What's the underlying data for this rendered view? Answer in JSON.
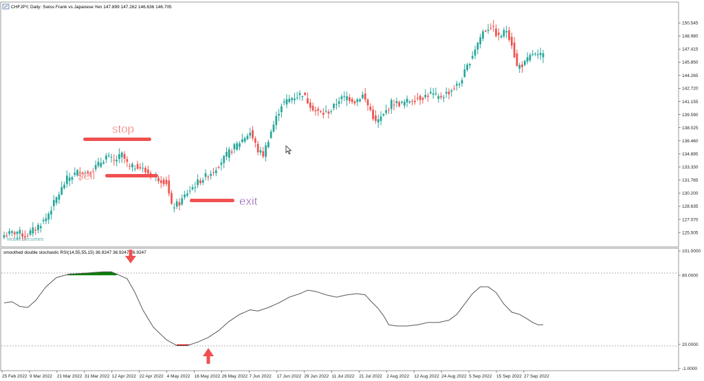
{
  "header": {
    "symbol_icon": "chart-icon",
    "text": "CHFJPY, Daily:  Swiss Frank vs Japanese Yen  147.899 147.262 146.636 146.705"
  },
  "watermark": "Mobile Securities",
  "indicator": {
    "title": "smoothed double stochastic RSI(14,55,55,15) 36.9247 36.9247 36.9247",
    "levels": {
      "upper": 80,
      "lower": 20
    },
    "ylim": [
      0,
      101
    ],
    "overbought_color": "#0a7d0a",
    "oversold_color": "#e01010"
  },
  "annotations": {
    "stop": "stop",
    "sell": "sell",
    "exit": "exit",
    "stop_color": "#f05050",
    "exit_color": "#7030a0",
    "marker_color": "#f05050"
  },
  "chart_data": [
    {
      "type": "candlestick",
      "title": "CHFJPY, Daily",
      "ylim": [
        124.2,
        151.8
      ],
      "y_ticks": [
        "150.545",
        "148.980",
        "147.415",
        "145.850",
        "144.265",
        "142.720",
        "141.155",
        "139.590",
        "138.025",
        "136.460",
        "134.895",
        "133.330",
        "131.765",
        "130.200",
        "128.635",
        "127.070",
        "125.505"
      ],
      "y_tick_values": [
        150.545,
        148.98,
        147.415,
        145.85,
        144.265,
        142.72,
        141.155,
        139.59,
        138.025,
        136.46,
        134.895,
        133.33,
        131.765,
        130.2,
        128.635,
        127.07,
        125.505
      ],
      "x_ticks": [
        "25 Feb 2022",
        "9 Mar 2022",
        "21 Mar 2022",
        "31 Mar 2022",
        "12 Apr 2022",
        "22 Apr 2022",
        "4 May 2022",
        "16 May 2022",
        "26 May 2022",
        "7 Jun 2022",
        "17 Jun 2022",
        "29 Jun 2022",
        "11 Jul 2022",
        "21 Jul 2022",
        "2 Aug 2022",
        "12 Aug 2022",
        "24 Aug 2022",
        "5 Sep 2022",
        "15 Sep 2022",
        "27 Sep 2022"
      ],
      "bull_color": "#26a69a",
      "bear_color": "#ef5350",
      "anchors": [
        [
          0,
          125.2
        ],
        [
          5,
          125.6
        ],
        [
          8,
          125.1
        ],
        [
          12,
          126.0
        ],
        [
          16,
          127.2
        ],
        [
          20,
          129.6
        ],
        [
          24,
          131.9
        ],
        [
          28,
          132.7
        ],
        [
          32,
          132.6
        ],
        [
          36,
          133.6
        ],
        [
          39,
          134.6
        ],
        [
          42,
          134.0
        ],
        [
          45,
          134.8
        ],
        [
          48,
          133.2
        ],
        [
          51,
          133.5
        ],
        [
          54,
          132.8
        ],
        [
          58,
          132.1
        ],
        [
          62,
          131.5
        ],
        [
          64,
          128.6
        ],
        [
          67,
          129.0
        ],
        [
          70,
          130.3
        ],
        [
          74,
          131.5
        ],
        [
          80,
          132.9
        ],
        [
          86,
          135.1
        ],
        [
          90,
          136.3
        ],
        [
          94,
          137.5
        ],
        [
          97,
          135.3
        ],
        [
          99,
          134.8
        ],
        [
          102,
          137.6
        ],
        [
          106,
          140.8
        ],
        [
          110,
          141.6
        ],
        [
          114,
          142.1
        ],
        [
          116,
          141.2
        ],
        [
          119,
          140.0
        ],
        [
          122,
          139.7
        ],
        [
          125,
          140.1
        ],
        [
          128,
          141.4
        ],
        [
          131,
          141.7
        ],
        [
          134,
          141.2
        ],
        [
          137,
          141.9
        ],
        [
          140,
          140.1
        ],
        [
          142,
          138.6
        ],
        [
          145,
          139.5
        ],
        [
          148,
          141.0
        ],
        [
          152,
          140.9
        ],
        [
          156,
          141.4
        ],
        [
          160,
          141.7
        ],
        [
          163,
          142.1
        ],
        [
          166,
          141.6
        ],
        [
          170,
          142.3
        ],
        [
          174,
          143.3
        ],
        [
          177,
          145.3
        ],
        [
          180,
          147.5
        ],
        [
          183,
          149.5
        ],
        [
          186,
          150.2
        ],
        [
          189,
          148.8
        ],
        [
          192,
          149.7
        ],
        [
          194,
          148.1
        ],
        [
          196,
          145.3
        ],
        [
          199,
          145.7
        ],
        [
          202,
          146.9
        ],
        [
          204,
          146.5
        ],
        [
          206,
          146.7
        ]
      ],
      "series": [
        {
          "name": "",
          "count": 207
        }
      ]
    },
    {
      "type": "line",
      "title": "smoothed double stochastic RSI(14,55,55,15)",
      "ylim": [
        0,
        101
      ],
      "y_ticks": [
        "101.0000",
        "80.0000",
        "20.0000",
        "-1.0000"
      ],
      "y_tick_values": [
        101,
        80,
        20,
        -1
      ],
      "anchors": [
        [
          0,
          56
        ],
        [
          3,
          57
        ],
        [
          6,
          53
        ],
        [
          9,
          52
        ],
        [
          12,
          58
        ],
        [
          16,
          70
        ],
        [
          20,
          78
        ],
        [
          25,
          81
        ],
        [
          32,
          82
        ],
        [
          38,
          83
        ],
        [
          41,
          83
        ],
        [
          44,
          80
        ],
        [
          47,
          77
        ],
        [
          50,
          65
        ],
        [
          53,
          50
        ],
        [
          57,
          35
        ],
        [
          62,
          24
        ],
        [
          66,
          19
        ],
        [
          70,
          19
        ],
        [
          74,
          22
        ],
        [
          78,
          26
        ],
        [
          82,
          32
        ],
        [
          86,
          40
        ],
        [
          90,
          46
        ],
        [
          94,
          50
        ],
        [
          97,
          49
        ],
        [
          101,
          52
        ],
        [
          105,
          56
        ],
        [
          109,
          61
        ],
        [
          113,
          64
        ],
        [
          116,
          67
        ],
        [
          119,
          66
        ],
        [
          123,
          63
        ],
        [
          127,
          61
        ],
        [
          131,
          63
        ],
        [
          135,
          64
        ],
        [
          138,
          63
        ],
        [
          140,
          58
        ],
        [
          143,
          51
        ],
        [
          145,
          45
        ],
        [
          147,
          37
        ],
        [
          150,
          36
        ],
        [
          154,
          36
        ],
        [
          158,
          37
        ],
        [
          162,
          39
        ],
        [
          166,
          39
        ],
        [
          170,
          41
        ],
        [
          173,
          46
        ],
        [
          176,
          55
        ],
        [
          179,
          64
        ],
        [
          182,
          70
        ],
        [
          185,
          70
        ],
        [
          188,
          65
        ],
        [
          191,
          55
        ],
        [
          194,
          48
        ],
        [
          197,
          46
        ],
        [
          200,
          42
        ],
        [
          202,
          39
        ],
        [
          204,
          37
        ]
      ],
      "levels": [
        80,
        20
      ]
    }
  ]
}
